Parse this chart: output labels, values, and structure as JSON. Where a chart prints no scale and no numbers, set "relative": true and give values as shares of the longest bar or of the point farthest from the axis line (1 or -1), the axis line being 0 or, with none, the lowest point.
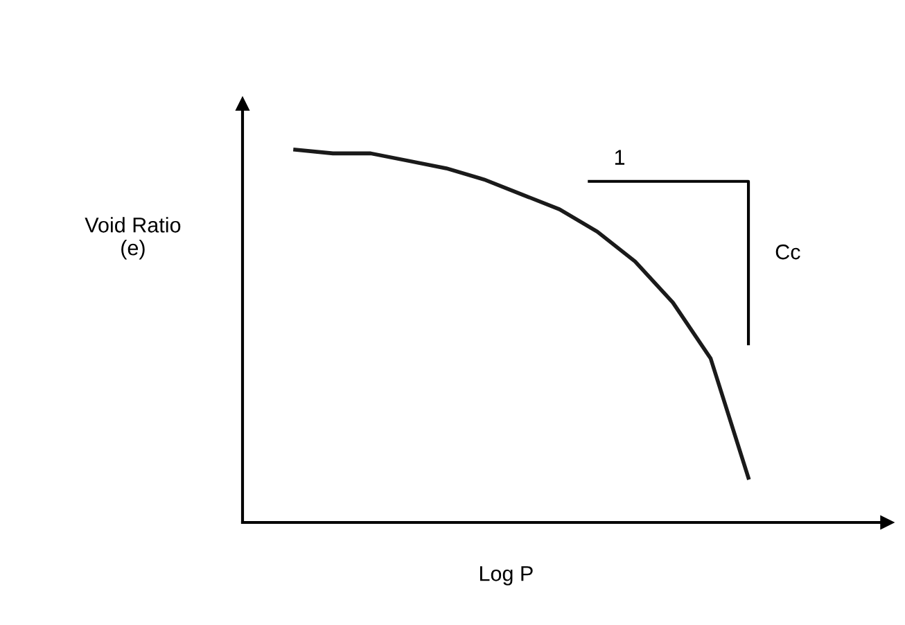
{
  "chart_data": {
    "type": "line",
    "relative": true,
    "xlabel": "Log P",
    "ylabel": "Void Ratio\n(e)",
    "categories": [
      null,
      null,
      null,
      null,
      null,
      null,
      null,
      null,
      null,
      null,
      null,
      null,
      null
    ],
    "series": [
      {
        "color": "#1a1a1a",
        "values": [
          1,
          0.99,
          0.99,
          0.97,
          0.95,
          0.92,
          0.88,
          0.84,
          0.78,
          0.7,
          0.59,
          0.44,
          0.12
        ]
      }
    ],
    "annotations": [
      "1",
      "Cc"
    ],
    "legend": false,
    "marker": "none",
    "line_style": "solid"
  }
}
